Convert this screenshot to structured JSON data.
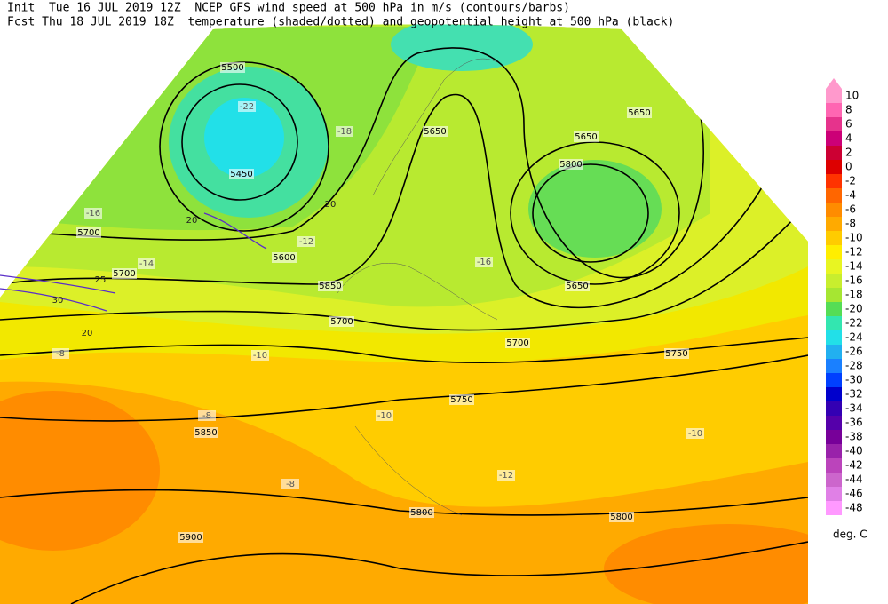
{
  "header": {
    "line1": "Init  Tue 16 JUL 2019 12Z  NCEP GFS wind speed at 500 hPa in m/s (contours/barbs)",
    "line2": "Fcst Thu 18 JUL 2019 18Z  temperature (shaded/dotted) and geopotential height at 500 hPa (black)"
  },
  "colorbar": {
    "levels": [
      10,
      8,
      6,
      4,
      2,
      0,
      -2,
      -4,
      -6,
      -8,
      -10,
      -12,
      -14,
      -16,
      -18,
      -20,
      -22,
      -24,
      -26,
      -28,
      -30,
      -32,
      -34,
      -36,
      -38,
      -40,
      -42,
      -44,
      -46,
      -48
    ],
    "colors": [
      "#ff99cc",
      "#ff66b2",
      "#e6338c",
      "#cc0077",
      "#cc0033",
      "#dd0000",
      "#ff3300",
      "#ff6600",
      "#ff8c00",
      "#ffaa00",
      "#ffcc00",
      "#ffee00",
      "#e8f522",
      "#c8ee2e",
      "#a6e632",
      "#55dd55",
      "#33e6b0",
      "#22e0e8",
      "#22b0f0",
      "#1a80ff",
      "#0040ff",
      "#0000cc",
      "#3300b3",
      "#5500aa",
      "#770099",
      "#9922aa",
      "#bb44bb",
      "#cc66cc",
      "#e080e6",
      "#ff99ff"
    ],
    "unit": "deg. C"
  },
  "height_labels": [
    "5500",
    "5450",
    "5650",
    "5650",
    "5800",
    "5650",
    "5650",
    "5700",
    "5600",
    "5700",
    "5850",
    "5700",
    "5750",
    "5700",
    "5750",
    "5850",
    "5900",
    "5800",
    "5800"
  ],
  "temperature_labels": [
    "-22",
    "-18",
    "-16",
    "-14",
    "-16",
    "-12",
    "-10",
    "-8",
    "-8",
    "-10",
    "-12",
    "-10",
    "-8"
  ],
  "wind_labels": [
    "20",
    "25",
    "30",
    "20",
    "20"
  ]
}
